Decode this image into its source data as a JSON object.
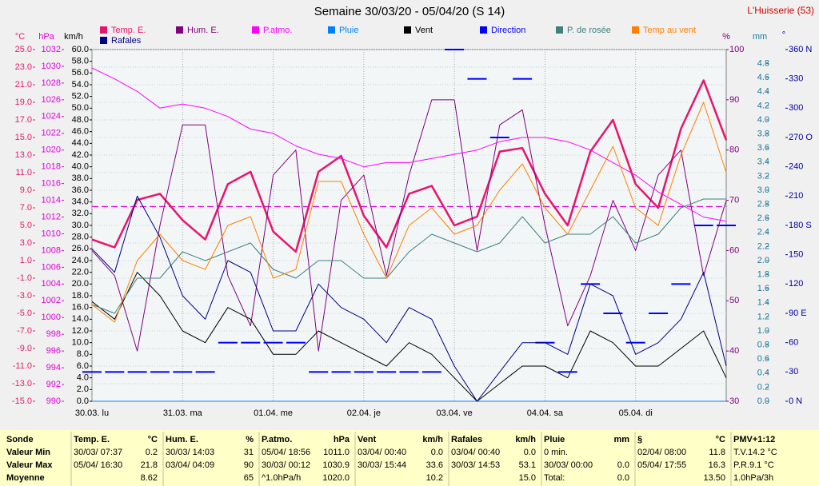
{
  "chart_data": {
    "type": "line",
    "title": "Semaine 30/03/20 - 05/04/20 (S 14)",
    "station": "L'Huisserie (53)",
    "xlim": [
      0,
      168
    ],
    "xticks": [
      {
        "value": 0,
        "label": "30.03. lu"
      },
      {
        "value": 24,
        "label": "31.03. ma"
      },
      {
        "value": 48,
        "label": "01.04. me"
      },
      {
        "value": 72,
        "label": "02.04. je"
      },
      {
        "value": 96,
        "label": "03.04. ve"
      },
      {
        "value": 120,
        "label": "04.04. sa"
      },
      {
        "value": 144,
        "label": "05.04. di"
      }
    ],
    "x": [
      0,
      6,
      12,
      18,
      24,
      30,
      36,
      42,
      48,
      54,
      60,
      66,
      72,
      78,
      84,
      90,
      96,
      102,
      108,
      114,
      120,
      126,
      132,
      138,
      144,
      150,
      156,
      162,
      168
    ],
    "grid": true,
    "y_axes": [
      {
        "unit": "°C",
        "side": "left",
        "color": "#e0206a",
        "lim": [
          -15,
          25
        ],
        "ticks": [
          {
            "value": -15,
            "label": "-15.0"
          },
          {
            "value": -13,
            "label": "-13.0"
          },
          {
            "value": -11,
            "label": "-11.0"
          },
          {
            "value": -9,
            "label": "-9.0"
          },
          {
            "value": -7,
            "label": "-7.0"
          },
          {
            "value": -5,
            "label": "-5.0"
          },
          {
            "value": -3,
            "label": "-3.0"
          },
          {
            "value": -1,
            "label": "-1.0"
          },
          {
            "value": 1,
            "label": "1.0"
          },
          {
            "value": 3,
            "label": "3.0"
          },
          {
            "value": 5,
            "label": "5.0"
          },
          {
            "value": 7,
            "label": "7.0"
          },
          {
            "value": 9,
            "label": "9.0"
          },
          {
            "value": 11,
            "label": "11.0"
          },
          {
            "value": 13,
            "label": "13.0"
          },
          {
            "value": 15,
            "label": "15.0"
          },
          {
            "value": 17,
            "label": "17.0"
          },
          {
            "value": 19,
            "label": "19.0"
          },
          {
            "value": 21,
            "label": "21.0"
          },
          {
            "value": 23,
            "label": "23.0"
          },
          {
            "value": 25,
            "label": "25.0"
          }
        ]
      },
      {
        "unit": "hPa",
        "side": "left",
        "color": "#e000e0",
        "lim": [
          990,
          1032
        ],
        "ticks": [
          990,
          992,
          994,
          996,
          998,
          1000,
          1002,
          1004,
          1006,
          1008,
          1010,
          1012,
          1014,
          1016,
          1018,
          1020,
          1022,
          1024,
          1026,
          1028,
          1030,
          1032
        ]
      },
      {
        "unit": "km/h",
        "side": "left",
        "color": "#000000",
        "lim": [
          0,
          60
        ],
        "ticks": [
          {
            "value": 0,
            "label": "0.0"
          },
          {
            "value": 2,
            "label": "2.0"
          },
          {
            "value": 4,
            "label": "4.0"
          },
          {
            "value": 6,
            "label": "6.0"
          },
          {
            "value": 8,
            "label": "8.0"
          },
          {
            "value": 10,
            "label": "10.0"
          },
          {
            "value": 12,
            "label": "12.0"
          },
          {
            "value": 14,
            "label": "14.0"
          },
          {
            "value": 16,
            "label": "16.0"
          },
          {
            "value": 18,
            "label": "18.0"
          },
          {
            "value": 20,
            "label": "20.0"
          },
          {
            "value": 22,
            "label": "22.0"
          },
          {
            "value": 24,
            "label": "24.0"
          },
          {
            "value": 26,
            "label": "26.0"
          },
          {
            "value": 28,
            "label": "28.0"
          },
          {
            "value": 30,
            "label": "30.0"
          },
          {
            "value": 32,
            "label": "32.0"
          },
          {
            "value": 34,
            "label": "34.0"
          },
          {
            "value": 36,
            "label": "36.0"
          },
          {
            "value": 38,
            "label": "38.0"
          },
          {
            "value": 40,
            "label": "40.0"
          },
          {
            "value": 42,
            "label": "42.0"
          },
          {
            "value": 44,
            "label": "44.0"
          },
          {
            "value": 46,
            "label": "46.0"
          },
          {
            "value": 48,
            "label": "48.0"
          },
          {
            "value": 50,
            "label": "50.0"
          },
          {
            "value": 52,
            "label": "52.0"
          },
          {
            "value": 54,
            "label": "54.0"
          },
          {
            "value": 56,
            "label": "56.0"
          },
          {
            "value": 58,
            "label": "58.0"
          },
          {
            "value": 60,
            "label": "60.0"
          }
        ]
      },
      {
        "unit": "%",
        "side": "right",
        "color": "#800080",
        "lim": [
          30,
          100
        ],
        "ticks": [
          30,
          40,
          50,
          60,
          70,
          80,
          90,
          100
        ]
      },
      {
        "unit": "mm",
        "side": "right",
        "color": "#1a7a9a",
        "lim": [
          0,
          5
        ],
        "ticks": [
          {
            "value": 0,
            "label": "0.0"
          },
          0.2,
          0.4,
          0.6,
          0.8,
          {
            "value": 1,
            "label": "1.0"
          },
          1.2,
          1.4,
          1.6,
          1.8,
          {
            "value": 2,
            "label": "2.0"
          },
          2.2,
          2.4,
          2.6,
          2.8,
          {
            "value": 3,
            "label": "3.0"
          },
          3.2,
          3.4,
          3.6,
          3.8,
          {
            "value": 4,
            "label": "4.0"
          },
          4.2,
          4.4,
          4.6,
          4.8
        ]
      },
      {
        "unit": "°",
        "side": "right",
        "color": "#0000a0",
        "lim": [
          0,
          360
        ],
        "ticks": [
          {
            "value": 0,
            "label": "0 N"
          },
          30,
          60,
          {
            "value": 90,
            "label": "90 E"
          },
          120,
          150,
          {
            "value": 180,
            "label": "180 S"
          },
          210,
          240,
          {
            "value": 270,
            "label": "270 O"
          },
          300,
          330,
          {
            "value": 360,
            "label": "360 N"
          }
        ]
      }
    ],
    "reference_line": {
      "axis": 1,
      "value": 1013.25,
      "color": "#e000e0"
    },
    "series": [
      {
        "name": "Temp. E.",
        "color": "#e8146c",
        "axis": 0,
        "width": 2.5,
        "values": [
          3.4,
          2.5,
          7.9,
          8.6,
          5.6,
          3.4,
          9.7,
          11.1,
          4.3,
          2.0,
          11.1,
          12.9,
          6.1,
          2.5,
          8.6,
          9.5,
          5.0,
          6.0,
          13.4,
          13.8,
          8.6,
          5.0,
          13.4,
          17.0,
          9.7,
          7.0,
          16.0,
          21.5,
          14.7
        ]
      },
      {
        "name": "Hum. E.",
        "color": "#800080",
        "axis": 3,
        "values": [
          60,
          55,
          40,
          65,
          85,
          85,
          55,
          45,
          75,
          80,
          40,
          70,
          75,
          55,
          75,
          90,
          90,
          60,
          85,
          88,
          65,
          45,
          55,
          70,
          60,
          75,
          80,
          55,
          70
        ]
      },
      {
        "name": "P.atmo.",
        "color": "#ff00ff",
        "axis": 1,
        "values": [
          1029.8,
          1028.5,
          1027,
          1025,
          1025.5,
          1025,
          1024,
          1022.5,
          1022,
          1020.5,
          1019.5,
          1019,
          1018,
          1018.5,
          1018.5,
          1019,
          1019.5,
          1020,
          1021,
          1021.5,
          1021.5,
          1021,
          1020,
          1018.5,
          1017,
          1015,
          1013.5,
          1012,
          1011.5
        ]
      },
      {
        "name": "Pluie",
        "color": "#0080ff",
        "axis": 4,
        "values": [
          0,
          0,
          0,
          0,
          0,
          0,
          0,
          0,
          0,
          0,
          0,
          0,
          0,
          0,
          0,
          0,
          0,
          0,
          0,
          0,
          0,
          0,
          0,
          0,
          0,
          0,
          0,
          0,
          0
        ]
      },
      {
        "name": "Vent",
        "color": "#000000",
        "axis": 2,
        "values": [
          17,
          14,
          22,
          18,
          12,
          10,
          16,
          14,
          8,
          8,
          12,
          10,
          8,
          6,
          10,
          8,
          4,
          0,
          3,
          6,
          6,
          4,
          12,
          10,
          6,
          6,
          9,
          12,
          4
        ]
      },
      {
        "name": "Direction",
        "color": "#0000ff",
        "axis": 5,
        "style": "dots",
        "values": [
          30,
          30,
          30,
          30,
          30,
          30,
          60,
          60,
          60,
          60,
          30,
          30,
          30,
          30,
          30,
          30,
          360,
          330,
          270,
          330,
          60,
          30,
          120,
          90,
          60,
          90,
          120,
          180,
          180
        ]
      },
      {
        "name": "P. de rosée",
        "color": "#408080",
        "axis": 0,
        "values": [
          -4,
          -5,
          -1,
          -1,
          2,
          1,
          2,
          3,
          0,
          -1,
          1,
          1,
          -1,
          -1,
          2,
          4,
          3,
          2,
          3,
          6,
          3,
          4,
          4,
          6,
          3,
          4,
          7,
          8,
          8
        ]
      },
      {
        "name": "Temp au vent",
        "color": "#ff8000",
        "axis": 0,
        "values": [
          -4,
          -6,
          1,
          4,
          1,
          0,
          5,
          6,
          -1,
          0,
          10,
          10,
          4,
          -1,
          5,
          7,
          4,
          5,
          9,
          12,
          7,
          4,
          9,
          14,
          7,
          5,
          13,
          19,
          11
        ]
      },
      {
        "name": "Rafales",
        "color": "#000080",
        "axis": 2,
        "values": [
          26,
          22,
          35,
          28,
          18,
          14,
          24,
          22,
          12,
          12,
          20,
          16,
          14,
          10,
          16,
          14,
          6,
          0,
          5,
          10,
          10,
          8,
          20,
          18,
          8,
          10,
          14,
          22,
          6
        ]
      }
    ]
  },
  "table": {
    "row_labels": [
      "Sonde",
      "Valeur Min",
      "Valeur Max",
      "Moyenne"
    ],
    "blocks": [
      {
        "title": "Temp. E.",
        "unit": "°C",
        "rows": [
          {
            "date": "30/03/ 07:37",
            "value": "0.2"
          },
          {
            "date": "05/04/ 16:30",
            "value": "21.8"
          },
          {
            "value": "8.62"
          }
        ]
      },
      {
        "title": "Hum. E.",
        "unit": "%",
        "rows": [
          {
            "date": "30/03/ 14:03",
            "value": "31"
          },
          {
            "date": "03/04/ 04:09",
            "value": "90"
          },
          {
            "value": "65"
          }
        ]
      },
      {
        "title": "P.atmo.",
        "unit": "hPa",
        "rows": [
          {
            "date": "05/04/ 18:56",
            "value": "1011.0"
          },
          {
            "date": "30/03/ 00:12",
            "value": "1030.9"
          },
          {
            "date": "^1.0hPa/h",
            "value": "1020.0"
          }
        ]
      },
      {
        "title": "Vent",
        "unit": "km/h",
        "rows": [
          {
            "date": "03/04/ 00:40",
            "value": "0.0"
          },
          {
            "date": "30/03/ 15:44",
            "value": "33.6"
          },
          {
            "value": "10.2"
          }
        ]
      },
      {
        "title": "Rafales",
        "unit": "km/h",
        "rows": [
          {
            "date": "03/04/ 00:40",
            "value": "0.0"
          },
          {
            "date": "30/03/ 14:53",
            "value": "53.1"
          },
          {
            "value": "15.0"
          }
        ]
      },
      {
        "title": "Pluie",
        "unit": "mm",
        "rows": [
          {
            "date": "0 min."
          },
          {
            "date": "30/03/ 00:00",
            "value": "0.0"
          },
          {
            "date": "Total:",
            "value": "0.0"
          }
        ]
      },
      {
        "title": "§",
        "unit": "°C",
        "rows": [
          {
            "date": "02/04/ 08:00",
            "value": "11.8"
          },
          {
            "date": "05/04/ 17:55",
            "value": "16.3"
          },
          {
            "value": "13.50"
          }
        ]
      },
      {
        "title": "PMV+1:12",
        "rows": [
          {
            "date": "T.V.14.2 °C"
          },
          {
            "date": "P.R.9.1 °C"
          },
          {
            "date": "1.0hPa/3h"
          }
        ]
      }
    ]
  }
}
